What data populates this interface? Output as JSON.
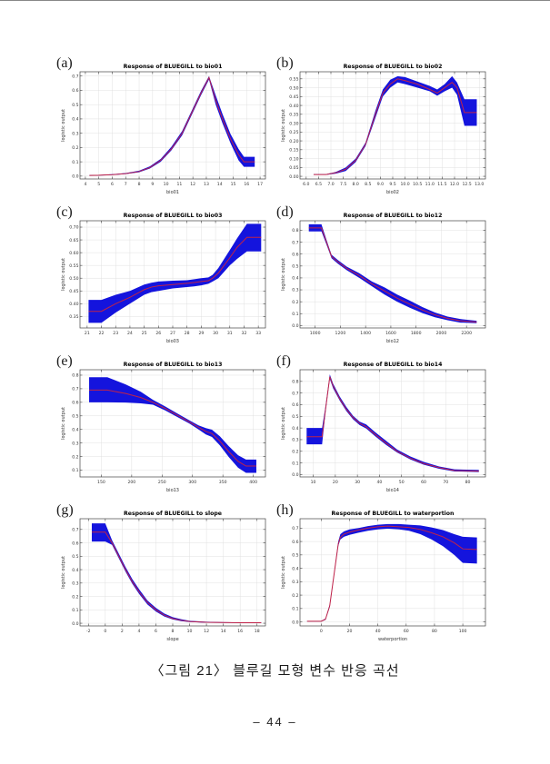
{
  "page": {
    "caption": "〈그림 21〉 블루길 모형 변수 반응 곡선",
    "page_number": "– 44 –"
  },
  "colors": {
    "band": "#1414dd",
    "line": "#c02348",
    "grid": "#e0e0e0",
    "axis": "#444444",
    "tick_text": "#333333",
    "title_text": "#000000"
  },
  "chart_data": [
    {
      "letter": "(a)",
      "type": "area",
      "title": "Response of BLUEGILL to bio01",
      "xlabel": "bio01",
      "ylabel": "logistic output",
      "xlim": [
        3.6,
        17.4
      ],
      "ylim": [
        -0.02,
        0.73
      ],
      "xticks": [
        "4",
        "5",
        "6",
        "7",
        "8",
        "9",
        "10",
        "11",
        "12",
        "13",
        "14",
        "15",
        "16",
        "17"
      ],
      "yticks": [
        "0.0",
        "0.1",
        "0.2",
        "0.3",
        "0.4",
        "0.5",
        "0.6",
        "0.7"
      ],
      "x": [
        4.3,
        5,
        6,
        7,
        8,
        8.8,
        9.6,
        10.4,
        11.2,
        12,
        12.6,
        13.2,
        13.7,
        14.2,
        14.8,
        15.4,
        15.8,
        16.6
      ],
      "mean": [
        0.005,
        0.006,
        0.01,
        0.017,
        0.032,
        0.06,
        0.11,
        0.19,
        0.3,
        0.46,
        0.58,
        0.69,
        0.53,
        0.4,
        0.26,
        0.15,
        0.1,
        0.1
      ],
      "lo": [
        0.003,
        0.004,
        0.008,
        0.014,
        0.027,
        0.053,
        0.1,
        0.18,
        0.285,
        0.445,
        0.565,
        0.675,
        0.5,
        0.37,
        0.23,
        0.11,
        0.065,
        0.065
      ],
      "hi": [
        0.007,
        0.008,
        0.013,
        0.021,
        0.038,
        0.068,
        0.12,
        0.205,
        0.315,
        0.475,
        0.595,
        0.7,
        0.565,
        0.435,
        0.295,
        0.19,
        0.135,
        0.135
      ]
    },
    {
      "letter": "(b)",
      "type": "area",
      "title": "Response of BLUEGILL to bio02",
      "xlabel": "bio02",
      "ylabel": "logistic output",
      "xlim": [
        5.75,
        13.25
      ],
      "ylim": [
        -0.015,
        0.59
      ],
      "xticks": [
        "6.0",
        "6.5",
        "7.0",
        "7.5",
        "8.0",
        "8.5",
        "9.0",
        "9.5",
        "10.0",
        "10.5",
        "11.0",
        "11.5",
        "12.0",
        "12.5",
        "13.0"
      ],
      "yticks": [
        "0.00",
        "0.05",
        "0.10",
        "0.15",
        "0.20",
        "0.25",
        "0.30",
        "0.35",
        "0.40",
        "0.45",
        "0.50",
        "0.55"
      ],
      "x": [
        6.3,
        6.8,
        7.2,
        7.6,
        8.0,
        8.4,
        8.8,
        9.1,
        9.4,
        9.7,
        10.0,
        10.5,
        11.0,
        11.3,
        11.6,
        11.9,
        12.1,
        12.4,
        12.9
      ],
      "mean": [
        0.01,
        0.01,
        0.02,
        0.04,
        0.09,
        0.18,
        0.35,
        0.47,
        0.52,
        0.55,
        0.54,
        0.52,
        0.49,
        0.47,
        0.5,
        0.53,
        0.5,
        0.36,
        0.36
      ],
      "lo": [
        0.008,
        0.008,
        0.015,
        0.03,
        0.08,
        0.17,
        0.33,
        0.45,
        0.5,
        0.53,
        0.52,
        0.5,
        0.48,
        0.455,
        0.48,
        0.5,
        0.46,
        0.285,
        0.285
      ],
      "hi": [
        0.012,
        0.012,
        0.025,
        0.05,
        0.1,
        0.19,
        0.37,
        0.49,
        0.545,
        0.565,
        0.56,
        0.535,
        0.51,
        0.49,
        0.52,
        0.565,
        0.53,
        0.435,
        0.435
      ]
    },
    {
      "letter": "(c)",
      "type": "area",
      "title": "Response of BLUEGILL to bio03",
      "xlabel": "bio03",
      "ylabel": "logistic output",
      "xlim": [
        20.5,
        33.5
      ],
      "ylim": [
        0.305,
        0.725
      ],
      "xticks": [
        "21",
        "22",
        "23",
        "24",
        "25",
        "26",
        "27",
        "28",
        "29",
        "30",
        "31",
        "32",
        "33"
      ],
      "yticks": [
        "0.35",
        "0.40",
        "0.45",
        "0.50",
        "0.55",
        "0.60",
        "0.65",
        "0.70"
      ],
      "x": [
        21.1,
        22,
        23,
        24,
        25,
        25.5,
        26,
        27,
        28,
        28.5,
        29,
        29.5,
        29.8,
        30.2,
        30.6,
        31,
        31.5,
        32.2,
        33.2
      ],
      "mean": [
        0.37,
        0.37,
        0.4,
        0.425,
        0.455,
        0.465,
        0.47,
        0.475,
        0.48,
        0.483,
        0.487,
        0.49,
        0.5,
        0.52,
        0.55,
        0.58,
        0.62,
        0.66,
        0.66
      ],
      "lo": [
        0.325,
        0.325,
        0.365,
        0.4,
        0.435,
        0.445,
        0.45,
        0.46,
        0.465,
        0.468,
        0.472,
        0.478,
        0.487,
        0.5,
        0.525,
        0.55,
        0.575,
        0.605,
        0.605
      ],
      "hi": [
        0.415,
        0.415,
        0.435,
        0.45,
        0.475,
        0.482,
        0.487,
        0.49,
        0.492,
        0.496,
        0.5,
        0.503,
        0.513,
        0.54,
        0.575,
        0.61,
        0.655,
        0.713,
        0.713
      ]
    },
    {
      "letter": "(d)",
      "type": "area",
      "title": "Response of BLUEGILL to bio12",
      "xlabel": "bio12",
      "ylabel": "logistic output",
      "xlim": [
        880,
        2350
      ],
      "ylim": [
        -0.02,
        0.88
      ],
      "xticks": [
        "1000",
        "1200",
        "1400",
        "1600",
        "1800",
        "2000",
        "2200"
      ],
      "yticks": [
        "0.0",
        "0.1",
        "0.2",
        "0.3",
        "0.4",
        "0.5",
        "0.6",
        "0.7",
        "0.8"
      ],
      "x": [
        950,
        1050,
        1090,
        1130,
        1180,
        1250,
        1350,
        1450,
        1550,
        1650,
        1750,
        1850,
        1950,
        2050,
        2150,
        2280
      ],
      "mean": [
        0.82,
        0.82,
        0.7,
        0.58,
        0.535,
        0.48,
        0.42,
        0.35,
        0.29,
        0.23,
        0.18,
        0.13,
        0.09,
        0.06,
        0.04,
        0.03
      ],
      "lo": [
        0.79,
        0.79,
        0.68,
        0.565,
        0.52,
        0.465,
        0.4,
        0.33,
        0.26,
        0.2,
        0.15,
        0.105,
        0.07,
        0.045,
        0.025,
        0.02
      ],
      "hi": [
        0.85,
        0.85,
        0.72,
        0.595,
        0.55,
        0.495,
        0.44,
        0.37,
        0.32,
        0.26,
        0.21,
        0.155,
        0.11,
        0.075,
        0.055,
        0.04
      ]
    },
    {
      "letter": "(e)",
      "type": "area",
      "title": "Response of BLUEGILL to bio13",
      "xlabel": "bio13",
      "ylabel": "logistic output",
      "xlim": [
        115,
        420
      ],
      "ylim": [
        0.05,
        0.84
      ],
      "xticks": [
        "150",
        "200",
        "250",
        "300",
        "350",
        "400"
      ],
      "yticks": [
        "0.1",
        "0.2",
        "0.3",
        "0.4",
        "0.5",
        "0.6",
        "0.7",
        "0.8"
      ],
      "x": [
        130,
        160,
        190,
        215,
        235,
        255,
        275,
        295,
        310,
        322,
        332,
        345,
        360,
        375,
        388,
        405
      ],
      "mean": [
        0.69,
        0.69,
        0.665,
        0.635,
        0.6,
        0.555,
        0.505,
        0.455,
        0.415,
        0.385,
        0.37,
        0.315,
        0.235,
        0.165,
        0.13,
        0.13
      ],
      "lo": [
        0.6,
        0.6,
        0.598,
        0.592,
        0.582,
        0.54,
        0.492,
        0.443,
        0.4,
        0.363,
        0.345,
        0.283,
        0.195,
        0.118,
        0.08,
        0.08
      ],
      "hi": [
        0.785,
        0.785,
        0.732,
        0.678,
        0.618,
        0.57,
        0.518,
        0.467,
        0.43,
        0.41,
        0.398,
        0.35,
        0.275,
        0.21,
        0.178,
        0.178
      ]
    },
    {
      "letter": "(f)",
      "type": "area",
      "title": "Response of BLUEGILL to bio14",
      "xlabel": "bio14",
      "ylabel": "logistic output",
      "xlim": [
        4,
        88
      ],
      "ylim": [
        -0.02,
        0.9
      ],
      "xticks": [
        "10",
        "20",
        "30",
        "40",
        "50",
        "60",
        "70",
        "80"
      ],
      "yticks": [
        "0.0",
        "0.1",
        "0.2",
        "0.3",
        "0.4",
        "0.5",
        "0.6",
        "0.7",
        "0.8"
      ],
      "x": [
        7,
        14,
        15.5,
        17.5,
        19,
        22,
        25,
        28,
        31,
        34,
        38,
        43,
        48,
        54,
        60,
        67,
        74,
        85
      ],
      "mean": [
        0.325,
        0.325,
        0.55,
        0.84,
        0.76,
        0.65,
        0.56,
        0.49,
        0.44,
        0.41,
        0.345,
        0.27,
        0.2,
        0.14,
        0.095,
        0.06,
        0.035,
        0.03
      ],
      "lo": [
        0.26,
        0.26,
        0.53,
        0.82,
        0.74,
        0.635,
        0.545,
        0.475,
        0.425,
        0.395,
        0.33,
        0.255,
        0.19,
        0.13,
        0.085,
        0.05,
        0.027,
        0.022
      ],
      "hi": [
        0.4,
        0.4,
        0.58,
        0.86,
        0.78,
        0.67,
        0.58,
        0.505,
        0.455,
        0.43,
        0.365,
        0.29,
        0.215,
        0.155,
        0.11,
        0.07,
        0.045,
        0.04
      ]
    },
    {
      "letter": "(g)",
      "type": "area",
      "title": "Response of BLUEGILL to slope",
      "xlabel": "slope",
      "ylabel": "logistic output",
      "xlim": [
        -3,
        19
      ],
      "ylim": [
        -0.02,
        0.78
      ],
      "xticks": [
        "-2",
        "0",
        "2",
        "4",
        "6",
        "8",
        "10",
        "12",
        "14",
        "16",
        "18"
      ],
      "yticks": [
        "0.0",
        "0.1",
        "0.2",
        "0.3",
        "0.4",
        "0.5",
        "0.6",
        "0.7"
      ],
      "x": [
        -1.6,
        -0.8,
        0,
        0.8,
        1.6,
        2.4,
        3.2,
        4,
        5,
        6,
        7,
        8,
        9,
        10,
        12,
        14,
        16,
        18.5
      ],
      "mean": [
        0.68,
        0.68,
        0.68,
        0.6,
        0.5,
        0.4,
        0.31,
        0.235,
        0.155,
        0.1,
        0.06,
        0.035,
        0.022,
        0.013,
        0.007,
        0.005,
        0.004,
        0.004
      ],
      "lo": [
        0.61,
        0.61,
        0.61,
        0.585,
        0.485,
        0.385,
        0.295,
        0.22,
        0.14,
        0.088,
        0.05,
        0.028,
        0.016,
        0.009,
        0.004,
        0.003,
        0.002,
        0.002
      ],
      "hi": [
        0.745,
        0.745,
        0.745,
        0.62,
        0.52,
        0.42,
        0.33,
        0.255,
        0.17,
        0.115,
        0.072,
        0.045,
        0.03,
        0.018,
        0.011,
        0.008,
        0.007,
        0.007
      ]
    },
    {
      "letter": "(h)",
      "type": "area",
      "title": "Response of BLUEGILL to waterportion",
      "xlabel": "waterportion",
      "ylabel": "logistic output",
      "xlim": [
        -15,
        116
      ],
      "ylim": [
        -0.03,
        0.77
      ],
      "xticks": [
        "0",
        "20",
        "40",
        "60",
        "80",
        "100"
      ],
      "yticks": [
        "0.0",
        "0.1",
        "0.2",
        "0.3",
        "0.4",
        "0.5",
        "0.6",
        "0.7"
      ],
      "x": [
        -10,
        -2,
        0,
        3,
        6,
        9,
        12,
        13.5,
        16,
        20,
        26,
        33,
        40,
        47,
        55,
        62,
        70,
        78,
        86,
        94,
        100,
        110
      ],
      "mean": [
        0.005,
        0.005,
        0.005,
        0.02,
        0.12,
        0.35,
        0.58,
        0.63,
        0.655,
        0.67,
        0.685,
        0.7,
        0.71,
        0.715,
        0.71,
        0.705,
        0.69,
        0.665,
        0.635,
        0.59,
        0.545,
        0.54
      ],
      "lo": [
        0.003,
        0.003,
        0.003,
        0.015,
        0.11,
        0.34,
        0.565,
        0.615,
        0.635,
        0.65,
        0.665,
        0.68,
        0.69,
        0.695,
        0.69,
        0.68,
        0.655,
        0.615,
        0.565,
        0.5,
        0.44,
        0.435
      ],
      "hi": [
        0.007,
        0.007,
        0.007,
        0.025,
        0.13,
        0.36,
        0.6,
        0.655,
        0.675,
        0.69,
        0.7,
        0.715,
        0.725,
        0.73,
        0.73,
        0.725,
        0.72,
        0.705,
        0.685,
        0.655,
        0.635,
        0.63
      ]
    }
  ]
}
